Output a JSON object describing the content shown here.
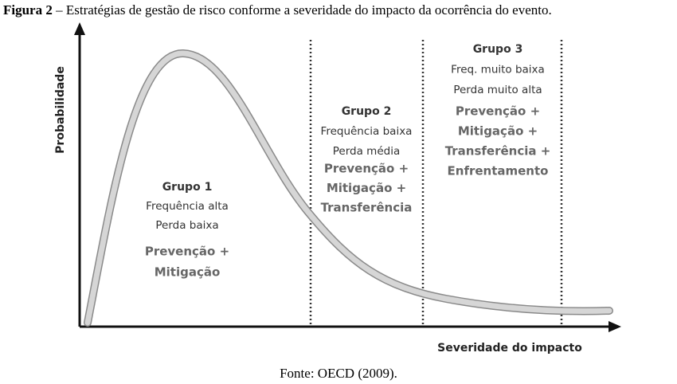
{
  "caption": {
    "label": "Figura 2",
    "text": "– Estratégias de gestão de risco conforme a severidade do impacto da ocorrência do evento."
  },
  "axes": {
    "y_label": "Probabilidade",
    "x_label": "Severidade do impacto"
  },
  "groups": [
    {
      "title": "Grupo 1",
      "lines": [
        "Frequência alta",
        "Perda baixa"
      ],
      "strategies": [
        "Prevenção +",
        "Mitigação"
      ]
    },
    {
      "title": "Grupo 2",
      "lines": [
        "Frequência baixa",
        "Perda média"
      ],
      "strategies": [
        "Prevenção +",
        "Mitigação +",
        "Transferência"
      ]
    },
    {
      "title": "Grupo 3",
      "lines": [
        "Freq. muito baixa",
        "Perda muito alta"
      ],
      "strategies": [
        "Prevenção +",
        "Mitigação +",
        "Transferência +",
        "Enfrentamento"
      ]
    }
  ],
  "source": "Fonte: OECD (2009)."
}
